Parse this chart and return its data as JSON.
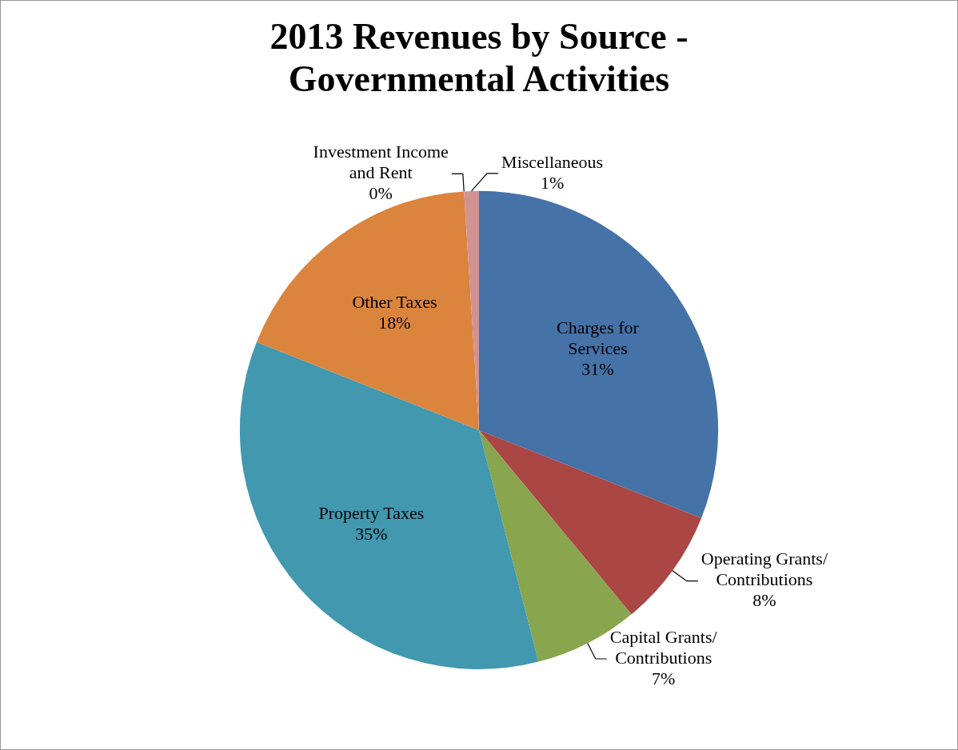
{
  "chart_data": {
    "type": "pie",
    "title": "2013 Revenues by Source - Governmental Activities",
    "categories": [
      "Charges for Services",
      "Operating Grants/ Contributions",
      "Capital Grants/ Contributions",
      "Property Taxes",
      "Other Taxes",
      "Investment Income and Rent",
      "Miscellaneous"
    ],
    "values": [
      31,
      8,
      7,
      35,
      18,
      0,
      1
    ],
    "value_labels": [
      "31%",
      "8%",
      "7%",
      "35%",
      "18%",
      "0%",
      "1%"
    ],
    "colors": [
      "#4572a7",
      "#aa4643",
      "#89a54e",
      "#4198af",
      "#db843d",
      "#93a9cf",
      "#d19392"
    ],
    "legend": false
  }
}
